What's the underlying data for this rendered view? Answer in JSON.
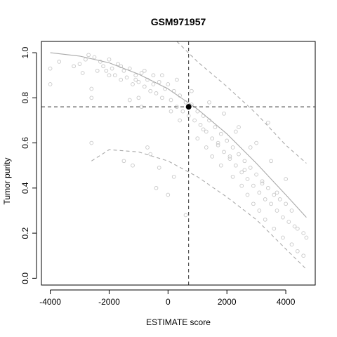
{
  "chart_data": {
    "type": "scatter",
    "title": "GSM971957",
    "xlabel": "ESTIMATE score",
    "ylabel": "Tumor purity",
    "xlim": [
      -4300,
      5000
    ],
    "ylim": [
      -0.03,
      1.05
    ],
    "xticks": [
      -4000,
      -2000,
      0,
      2000,
      4000
    ],
    "xtick_labels": [
      "-4000",
      "-2000",
      "0",
      "2000",
      "4000"
    ],
    "yticks": [
      0.0,
      0.2,
      0.4,
      0.6,
      0.8,
      1.0
    ],
    "ytick_labels": [
      "0.0",
      "0.2",
      "0.4",
      "0.6",
      "0.8",
      "1.0"
    ],
    "grid": false,
    "legend": "none",
    "colors": {
      "reference_points": "#c8c8c8",
      "fit_curve": "#aaaaaa",
      "interval_curves": "#aaaaaa",
      "crosshair": "#333333",
      "sample_point": "#000000"
    },
    "sample": {
      "name": "GSM971957",
      "x": 700,
      "y": 0.76
    },
    "fit_curve": {
      "x": [
        -4000,
        -3000,
        -2000,
        -1000,
        0,
        1000,
        2000,
        3000,
        4000,
        4700
      ],
      "y": [
        1.0,
        0.985,
        0.955,
        0.905,
        0.84,
        0.75,
        0.64,
        0.51,
        0.37,
        0.27
      ]
    },
    "upper_interval": {
      "x": [
        300,
        1000,
        2000,
        3000,
        4000,
        4700
      ],
      "y": [
        1.05,
        0.96,
        0.85,
        0.73,
        0.59,
        0.51
      ]
    },
    "lower_interval": {
      "x": [
        -2600,
        -2000,
        -1000,
        0,
        1000,
        2000,
        3000,
        4000,
        4700
      ],
      "y": [
        0.52,
        0.57,
        0.56,
        0.52,
        0.45,
        0.36,
        0.26,
        0.13,
        0.04
      ]
    },
    "reference_series": {
      "name": "",
      "points_note": "",
      "x": [
        -4000,
        -4000,
        -3700,
        -3000,
        -2900,
        -2700,
        -2600,
        -2500,
        -2300,
        -2200,
        -2100,
        -2000,
        -1900,
        -1800,
        -1700,
        -1600,
        -1500,
        -1400,
        -1300,
        -1200,
        -1100,
        -1000,
        -900,
        -800,
        -700,
        -600,
        -500,
        -400,
        -300,
        -200,
        -100,
        0,
        100,
        200,
        300,
        400,
        500,
        600,
        700,
        800,
        900,
        1000,
        1100,
        1200,
        1300,
        1400,
        1500,
        1600,
        1700,
        1800,
        1900,
        2000,
        2100,
        2200,
        2300,
        2400,
        2500,
        2600,
        2700,
        2800,
        2900,
        3000,
        3100,
        3200,
        3300,
        3400,
        3500,
        3600,
        3700,
        3800,
        3900,
        4000,
        4100,
        4200,
        4300,
        4400,
        4600,
        4700,
        -2600,
        -2600,
        -1500,
        -1300,
        -1200,
        -700,
        -600,
        -400,
        -300,
        0,
        200,
        600,
        3400,
        1000,
        1300,
        1500,
        1800,
        2200,
        2500,
        2700,
        2900,
        3100,
        3300,
        3600,
        3900,
        4200,
        4400,
        4600,
        2300,
        2800,
        -3200,
        -2800,
        -2400,
        -2000,
        -1600,
        -1100,
        -800,
        -500,
        -200,
        300,
        800,
        1400,
        1900,
        2400,
        3000,
        3500,
        4000,
        -1000,
        -900,
        100,
        400,
        1200,
        1700,
        2100,
        2600,
        3200,
        3700
      ],
      "y": [
        0.93,
        0.86,
        0.96,
        0.95,
        0.91,
        0.99,
        0.8,
        0.98,
        0.96,
        0.94,
        0.92,
        0.97,
        0.93,
        0.9,
        0.95,
        0.88,
        0.92,
        0.89,
        0.93,
        0.86,
        0.9,
        0.87,
        0.91,
        0.85,
        0.88,
        0.83,
        0.9,
        0.82,
        0.87,
        0.8,
        0.84,
        0.86,
        0.79,
        0.83,
        0.76,
        0.81,
        0.74,
        0.78,
        0.72,
        0.77,
        0.7,
        0.74,
        0.68,
        0.72,
        0.65,
        0.7,
        0.62,
        0.67,
        0.59,
        0.64,
        0.56,
        0.61,
        0.53,
        0.58,
        0.5,
        0.55,
        0.47,
        0.52,
        0.44,
        0.49,
        0.41,
        0.46,
        0.38,
        0.43,
        0.35,
        0.4,
        0.33,
        0.37,
        0.3,
        0.35,
        0.27,
        0.33,
        0.25,
        0.3,
        0.23,
        0.22,
        0.2,
        0.18,
        0.6,
        0.84,
        0.52,
        0.79,
        0.5,
        0.58,
        0.55,
        0.4,
        0.49,
        0.37,
        0.45,
        0.28,
        0.69,
        0.62,
        0.58,
        0.54,
        0.5,
        0.45,
        0.41,
        0.37,
        0.33,
        0.3,
        0.26,
        0.22,
        0.18,
        0.15,
        0.12,
        0.1,
        0.65,
        0.58,
        0.94,
        0.97,
        0.92,
        0.9,
        0.94,
        0.88,
        0.92,
        0.86,
        0.9,
        0.88,
        0.83,
        0.78,
        0.73,
        0.67,
        0.6,
        0.52,
        0.44,
        0.8,
        0.76,
        0.74,
        0.7,
        0.66,
        0.6,
        0.54,
        0.48,
        0.42,
        0.38
      ]
    }
  }
}
